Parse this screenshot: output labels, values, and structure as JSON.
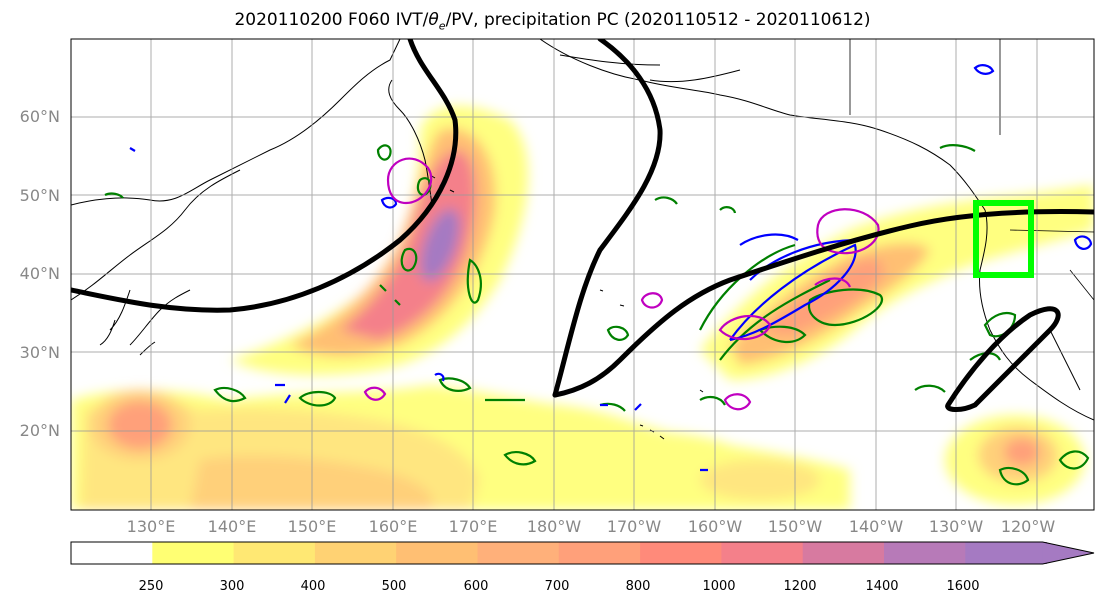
{
  "map": {
    "title": "2020110200 F060 IVT/θe/PV, precipitation PC (2020110512 - 2020110612)",
    "title_prefix": "2020110200 F060 IVT/",
    "title_theta": "θ",
    "title_sub": "e",
    "title_suffix": "/PV, precipitation PC (2020110512 - 2020110612)",
    "lat_labels": [
      "60°N",
      "50°N",
      "40°N",
      "30°N",
      "20°N"
    ],
    "lon_labels": [
      "130°E",
      "140°E",
      "150°E",
      "160°E",
      "170°E",
      "180°W",
      "170°W",
      "160°W",
      "150°W",
      "140°W",
      "130°W",
      "120°W"
    ],
    "colorbar": {
      "ticks": [
        "250",
        "300",
        "400",
        "500",
        "600",
        "700",
        "800",
        "1000",
        "1200",
        "1400",
        "1600"
      ],
      "colors": [
        "#ffff73",
        "#ffe873",
        "#ffd273",
        "#ffbf73",
        "#ffb07a",
        "#ffa07a",
        "#ff8a7a",
        "#f4808a",
        "#d77aa0",
        "#b77ab8",
        "#a57ac2"
      ]
    },
    "colors": {
      "ivt_low": "#ffff73",
      "ivt_mid": "#ffbf73",
      "ivt_high": "#f4808a",
      "ivt_peak": "#a57ac2",
      "theta_e_contour": "#000000",
      "pv_positive": "#008000",
      "pv_blue": "#0000ff",
      "pv_magenta": "#c000c0",
      "highlight_box": "#00ff00"
    }
  }
}
